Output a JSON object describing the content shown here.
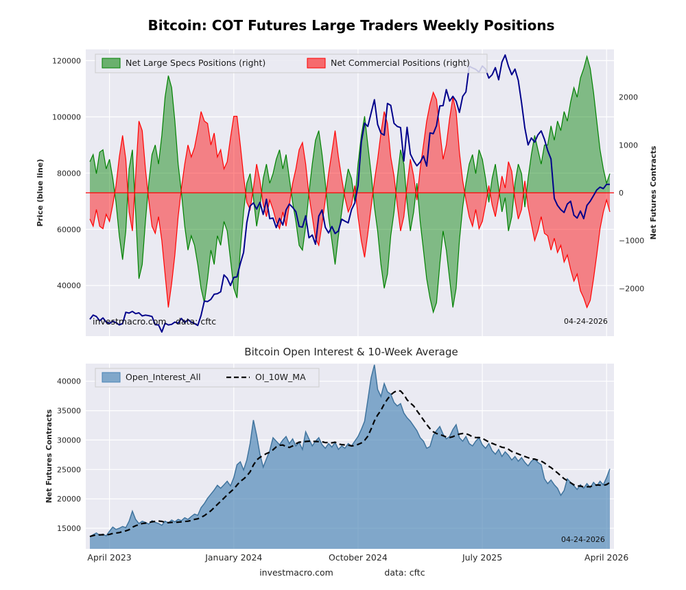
{
  "figure": {
    "background": "#ffffff",
    "plot_background": "#eaeaf2",
    "grid_color": "#ffffff"
  },
  "chart_data": [
    {
      "id": "cot_positions",
      "type": "area",
      "title": "Bitcoin: COT Futures Large Traders Weekly Positions",
      "ylabel_left": "Price (blue line)",
      "ylabel_right": "Net Futures Contracts",
      "left_axis": {
        "ticks": [
          40000,
          60000,
          80000,
          100000,
          120000
        ],
        "ylim": [
          22000,
          124000
        ]
      },
      "right_axis": {
        "ticks": [
          -2000,
          -1000,
          0,
          1000,
          2000
        ],
        "ylim": [
          -3000,
          3000
        ]
      },
      "grid": true,
      "legend_position": "upper left",
      "legend": [
        {
          "label": "Net Large Specs Positions (right)",
          "color": "#008000",
          "type": "patch"
        },
        {
          "label": "Net Commercial Positions (right)",
          "color": "#ff0000",
          "type": "patch"
        }
      ],
      "annotations": {
        "source": "investmacro.com",
        "credit": "data: cftc",
        "date": "04-24-2026"
      },
      "zero_line_color": "#ff0000",
      "series": [
        {
          "name": "Net Large Specs Positions",
          "axis": "right",
          "color": "#008000",
          "values": [
            650,
            800,
            400,
            850,
            900,
            500,
            700,
            300,
            -200,
            -900,
            -1400,
            -800,
            500,
            900,
            -400,
            -1800,
            -1500,
            -600,
            200,
            800,
            1000,
            600,
            1200,
            2000,
            2450,
            2200,
            1500,
            600,
            0,
            -700,
            -1200,
            -900,
            -1100,
            -1500,
            -2000,
            -2300,
            -1800,
            -1200,
            -1500,
            -900,
            -1100,
            -600,
            -800,
            -1400,
            -2000,
            -2200,
            -1200,
            -400,
            200,
            400,
            -100,
            -700,
            -300,
            300,
            600,
            200,
            400,
            700,
            900,
            500,
            800,
            300,
            -200,
            -600,
            -1100,
            -1200,
            -700,
            0,
            600,
            1100,
            1300,
            800,
            200,
            -500,
            -1000,
            -1500,
            -900,
            -400,
            100,
            500,
            300,
            -200,
            600,
            1200,
            1600,
            1000,
            400,
            -300,
            -800,
            -1500,
            -2000,
            -1700,
            -900,
            -400,
            300,
            900,
            600,
            -200,
            -800,
            -400,
            200,
            -600,
            -1200,
            -1800,
            -2200,
            -2500,
            -2300,
            -1500,
            -800,
            -1200,
            -1800,
            -2400,
            -2000,
            -1000,
            -300,
            200,
            600,
            800,
            400,
            900,
            700,
            300,
            -200,
            300,
            600,
            100,
            -400,
            -100,
            -800,
            -500,
            200,
            600,
            400,
            -300,
            300,
            800,
            1200,
            900,
            600,
            1000,
            1000,
            1400,
            1100,
            1500,
            1300,
            1700,
            1500,
            1900,
            2200,
            2000,
            2400,
            2600,
            2850,
            2600,
            2100,
            1500,
            900,
            500,
            200,
            400
          ]
        },
        {
          "name": "Net Commercial Positions",
          "axis": "right",
          "color": "#ff0000",
          "values": [
            -550,
            -700,
            -350,
            -700,
            -750,
            -450,
            -600,
            -250,
            150,
            750,
            1200,
            700,
            -400,
            -800,
            350,
            1500,
            1300,
            500,
            -150,
            -700,
            -850,
            -500,
            -1000,
            -1700,
            -2400,
            -1900,
            -1300,
            -500,
            100,
            600,
            1000,
            750,
            950,
            1300,
            1700,
            1500,
            1450,
            1000,
            1250,
            750,
            900,
            500,
            650,
            1150,
            1600,
            1600,
            1000,
            350,
            -200,
            -350,
            100,
            600,
            250,
            -250,
            -500,
            -150,
            -350,
            -600,
            -750,
            -400,
            -700,
            -250,
            200,
            500,
            900,
            1050,
            600,
            -50,
            -500,
            -950,
            -1100,
            -650,
            -150,
            400,
            850,
            1300,
            750,
            300,
            -100,
            -400,
            -250,
            150,
            -500,
            -1000,
            -1350,
            -850,
            -300,
            250,
            700,
            1250,
            1700,
            1450,
            750,
            350,
            -250,
            -800,
            -500,
            150,
            700,
            350,
            -150,
            500,
            1000,
            1500,
            1850,
            2100,
            1950,
            1300,
            700,
            1000,
            1550,
            2000,
            1700,
            850,
            250,
            -150,
            -500,
            -700,
            -350,
            -750,
            -600,
            -250,
            150,
            -250,
            -500,
            -100,
            350,
            100,
            650,
            450,
            -150,
            -550,
            -350,
            250,
            -300,
            -650,
            -1000,
            -800,
            -500,
            -850,
            -900,
            -1200,
            -950,
            -1250,
            -1100,
            -1450,
            -1300,
            -1600,
            -1850,
            -1700,
            -2050,
            -2200,
            -2400,
            -2250,
            -1800,
            -1300,
            -750,
            -400,
            -150,
            -400
          ]
        },
        {
          "name": "Price",
          "axis": "left",
          "color": "#00008b",
          "values": [
            28000,
            29500,
            29000,
            27500,
            28500,
            27000,
            26500,
            27300,
            26800,
            26000,
            26500,
            30500,
            30200,
            30800,
            30000,
            30300,
            29200,
            29500,
            29300,
            29000,
            26100,
            26000,
            23500,
            26600,
            26000,
            26200,
            27000,
            26600,
            28300,
            26800,
            27900,
            27000,
            26500,
            25800,
            29400,
            34500,
            34300,
            35100,
            36900,
            37100,
            37800,
            43800,
            42600,
            40000,
            42900,
            43100,
            47800,
            51800,
            62400,
            68300,
            69400,
            67200,
            69600,
            65300,
            70700,
            63800,
            64000,
            60600,
            63900,
            61500,
            66900,
            69000,
            67800,
            66300,
            61000,
            60800,
            64800,
            57000,
            58000,
            54700,
            64700,
            66900,
            60700,
            58700,
            61000,
            58500,
            59400,
            63600,
            62900,
            62300,
            67000,
            69400,
            75600,
            91000,
            97800,
            96600,
            101400,
            106100,
            97300,
            94200,
            93500,
            104800,
            104100,
            97700,
            96600,
            96200,
            84300,
            96300,
            86800,
            84400,
            82600,
            83900,
            86100,
            82500,
            94300,
            94000,
            96900,
            103900,
            104000,
            109700,
            105600,
            107300,
            105600,
            101600,
            107300,
            108900,
            118000,
            117400,
            116900,
            115900,
            118100,
            117000,
            113800,
            115000,
            117500,
            113200,
            119500,
            122000,
            118000,
            115000,
            117000,
            113000,
            105000,
            96000,
            90000,
            92500,
            91000,
            93600,
            95000,
            92000,
            88000,
            85000,
            71000,
            68500,
            67000,
            66000,
            69000,
            70000,
            65000,
            64000,
            66500,
            63800,
            68500,
            70000,
            72000,
            74000,
            75000,
            74500,
            76000,
            76000
          ]
        }
      ]
    },
    {
      "id": "open_interest",
      "type": "area",
      "title": "Bitcoin Open Interest & 10-Week Average",
      "ylabel": "Net Futures Contracts",
      "y_axis": {
        "ticks": [
          15000,
          20000,
          25000,
          30000,
          35000,
          40000
        ],
        "ylim": [
          11500,
          43000
        ]
      },
      "x_ticks": {
        "indices": [
          6,
          44,
          82,
          120,
          158
        ],
        "labels": [
          "April 2023",
          "January 2024",
          "October 2024",
          "July 2025",
          "April 2026"
        ]
      },
      "grid": true,
      "legend_position": "upper left",
      "legend": [
        {
          "label": "Open_Interest_All",
          "color": "#4682b4",
          "type": "patch"
        },
        {
          "label": "OI_10W_MA",
          "color": "#000000",
          "type": "dashed-line"
        }
      ],
      "annotations": {
        "date": "04-24-2026"
      },
      "footer": {
        "source": "investmacro.com",
        "credit": "data: cftc"
      },
      "series": [
        {
          "name": "Open_Interest_All",
          "color": "#4682b4",
          "edge_color": "#3f739d",
          "values": [
            13600,
            13900,
            14200,
            13800,
            14000,
            13700,
            14500,
            15200,
            14800,
            15000,
            15300,
            15100,
            16200,
            17900,
            16500,
            15800,
            16200,
            16000,
            15700,
            16300,
            16000,
            15800,
            15500,
            16200,
            15900,
            16400,
            16100,
            16500,
            16300,
            16800,
            16500,
            17000,
            17400,
            17200,
            18500,
            19200,
            20100,
            20800,
            21500,
            22300,
            21800,
            22400,
            23000,
            22200,
            23600,
            25800,
            26300,
            24900,
            26600,
            29400,
            33400,
            30800,
            27600,
            25400,
            26800,
            28200,
            30400,
            29800,
            29200,
            30000,
            30600,
            29400,
            30200,
            29000,
            29600,
            28400,
            31400,
            30200,
            29000,
            29800,
            30400,
            29200,
            28600,
            29400,
            28800,
            29600,
            28400,
            29000,
            28600,
            29400,
            29000,
            29800,
            30600,
            31800,
            33200,
            36800,
            40600,
            42800,
            38600,
            37400,
            39600,
            38200,
            37800,
            36400,
            35800,
            36200,
            34600,
            33800,
            33200,
            32400,
            31600,
            30400,
            29800,
            28600,
            28900,
            30800,
            31600,
            32300,
            31000,
            30200,
            30600,
            31800,
            32600,
            30400,
            29800,
            30600,
            29400,
            29000,
            29800,
            30400,
            29200,
            28600,
            29400,
            28200,
            27600,
            28400,
            27200,
            28000,
            27400,
            26600,
            27200,
            26400,
            27000,
            26200,
            25600,
            26400,
            26800,
            26200,
            25800,
            23400,
            22600,
            23200,
            22400,
            21800,
            20600,
            21400,
            23400,
            22800,
            22200,
            21600,
            22400,
            21800,
            22600,
            21900,
            22800,
            22200,
            23000,
            22400,
            23600,
            25100
          ]
        },
        {
          "name": "OI_10W_MA",
          "derived": "moving_average",
          "window": 10,
          "color": "#000000"
        }
      ]
    }
  ]
}
